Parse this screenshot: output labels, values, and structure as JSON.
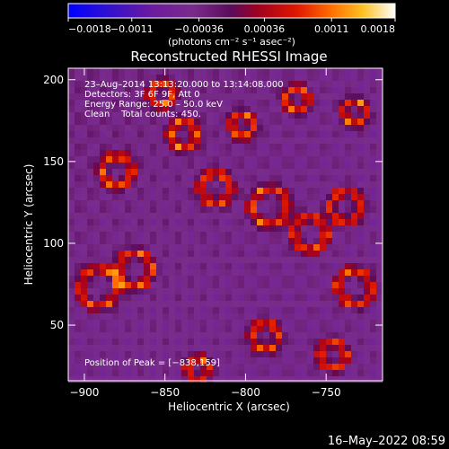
{
  "chart_data": {
    "type": "heatmap",
    "title": "Reconstructed RHESSI Image",
    "xlabel": "Heliocentric X (arcsec)",
    "ylabel": "Heliocentric Y (arcsec)",
    "xlim": [
      -910,
      -715
    ],
    "ylim": [
      16,
      207
    ],
    "x_ticks": [
      -900,
      -850,
      -800,
      -750
    ],
    "y_ticks": [
      50,
      100,
      150,
      200
    ],
    "x_tick_labels": [
      "−900",
      "−850",
      "−800",
      "−750"
    ],
    "y_tick_labels": [
      "50",
      "100",
      "150",
      "200"
    ],
    "colorbar": {
      "min": -0.0018,
      "max": 0.0018,
      "tick_values": [
        -0.0018,
        -0.0011,
        -0.00036,
        0.00036,
        0.0011,
        0.0018
      ],
      "tick_labels": [
        "−0.0018",
        "−0.0011",
        "−0.00036",
        "0.00036",
        "0.0011",
        "0.0018"
      ],
      "units_label": "(photons cm⁻² s⁻¹ asec⁻²)"
    },
    "annotations": [
      "23–Aug–2014 13:13:20.000 to 13:14:08.000",
      "Detectors: 3F 6F 9F, Att 0",
      "Energy Range: 25.0 – 50.0 keV",
      "Clean    Total counts: 450.",
      "Position of Peak = [−838,159]"
    ],
    "peak_position": [
      -838,
      159
    ],
    "grid": false
  },
  "footer": {
    "date_stamp": "16–May–2022 08:59"
  }
}
